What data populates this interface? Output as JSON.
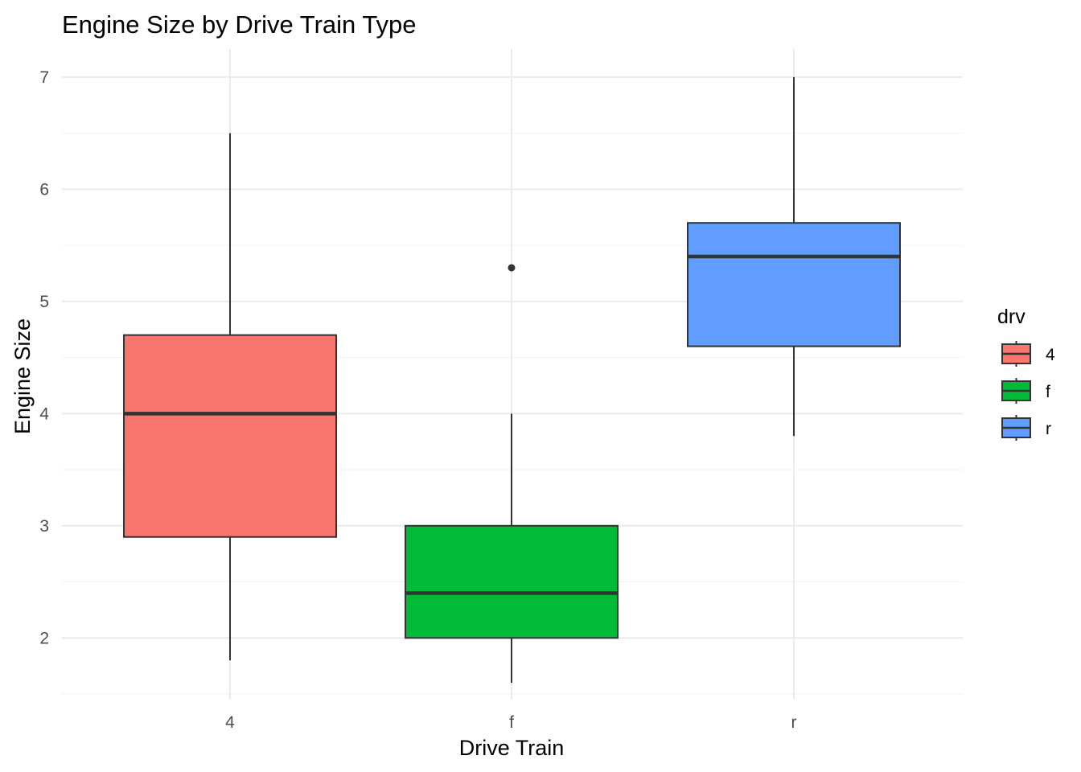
{
  "chart_data": {
    "type": "box",
    "title": "Engine Size by Drive Train Type",
    "xlabel": "Drive Train",
    "ylabel": "Engine Size",
    "categories": [
      "4",
      "f",
      "r"
    ],
    "ylim": [
      1.45,
      7.25
    ],
    "yticks": [
      2,
      3,
      4,
      5,
      6,
      7
    ],
    "yticks_labels": [
      "2",
      "3",
      "4",
      "5",
      "6",
      "7"
    ],
    "grid": true,
    "legend": {
      "title": "drv",
      "placement": "right",
      "entries": [
        "4",
        "f",
        "r"
      ]
    },
    "boxes": [
      {
        "category": "4",
        "color": "#F8766D",
        "whisker_low": 1.8,
        "q1": 2.9,
        "median": 4.0,
        "q3": 4.7,
        "whisker_high": 6.5,
        "outliers": []
      },
      {
        "category": "f",
        "color": "#00BA38",
        "whisker_low": 1.6,
        "q1": 2.0,
        "median": 2.4,
        "q3": 3.0,
        "whisker_high": 4.0,
        "outliers": [
          5.3
        ]
      },
      {
        "category": "r",
        "color": "#619CFF",
        "whisker_low": 3.8,
        "q1": 4.6,
        "median": 5.4,
        "q3": 5.7,
        "whisker_high": 7.0,
        "outliers": []
      }
    ]
  }
}
